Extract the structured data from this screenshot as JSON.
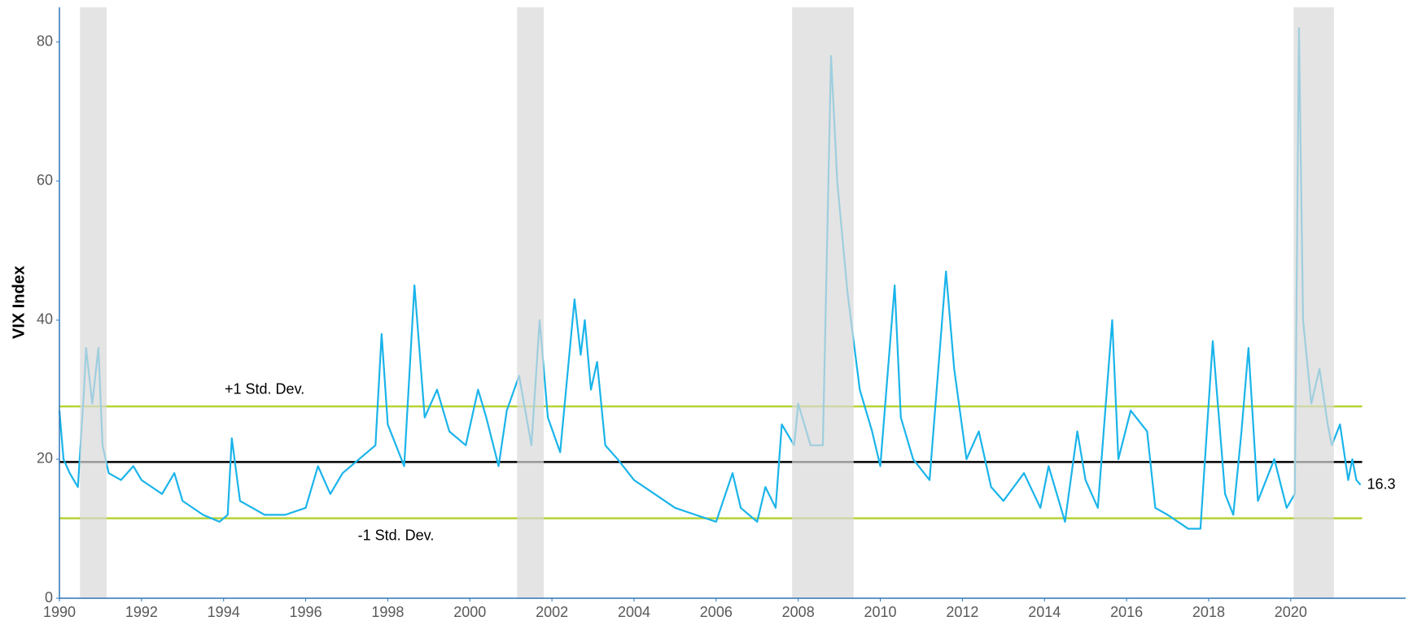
{
  "chart_data": {
    "type": "line",
    "y_label": "VIX Index",
    "xlim": [
      1990,
      2022.8
    ],
    "ylim": [
      0,
      85
    ],
    "xticks": [
      1990,
      1992,
      1994,
      1996,
      1998,
      2000,
      2002,
      2004,
      2006,
      2008,
      2010,
      2012,
      2014,
      2016,
      2018,
      2020
    ],
    "yticks": [
      0,
      20,
      40,
      60,
      80
    ],
    "shaded_color": "#d9d9d9",
    "shaded_regions": [
      [
        1990.5,
        1991.15
      ],
      [
        2001.15,
        2001.8
      ],
      [
        2007.85,
        2009.35
      ],
      [
        2020.07,
        2021.05
      ]
    ],
    "reference_lines": [
      {
        "label": "+1 Std. Dev.",
        "value": 27.6,
        "color": "#b5d334"
      },
      {
        "value": 19.6,
        "color": "#000000"
      },
      {
        "label": "-1 Std. Dev.",
        "value": 11.5,
        "color": "#b5d334"
      }
    ],
    "series": [
      {
        "color": "#1ab4ea",
        "x": [
          1990.0,
          1990.1,
          1990.25,
          1990.45,
          1990.6,
          1990.65,
          1990.8,
          1990.95,
          1991.05,
          1991.2,
          1991.5,
          1991.8,
          1992.0,
          1992.5,
          1992.8,
          1993.0,
          1993.5,
          1993.9,
          1994.1,
          1994.2,
          1994.4,
          1994.7,
          1995.0,
          1995.5,
          1996.0,
          1996.3,
          1996.6,
          1996.9,
          1997.3,
          1997.7,
          1997.85,
          1998.0,
          1998.4,
          1998.65,
          1998.9,
          1999.2,
          1999.5,
          1999.9,
          2000.2,
          2000.4,
          2000.7,
          2000.9,
          2001.2,
          2001.5,
          2001.7,
          2001.9,
          2002.2,
          2002.55,
          2002.7,
          2002.8,
          2002.95,
          2003.1,
          2003.3,
          2003.6,
          2004.0,
          2004.5,
          2005.0,
          2005.5,
          2006.0,
          2006.4,
          2006.6,
          2007.0,
          2007.2,
          2007.45,
          2007.6,
          2007.9,
          2008.0,
          2008.3,
          2008.6,
          2008.8,
          2008.95,
          2009.2,
          2009.5,
          2009.8,
          2010.0,
          2010.35,
          2010.5,
          2010.8,
          2011.2,
          2011.6,
          2011.8,
          2012.1,
          2012.4,
          2012.7,
          2013.0,
          2013.5,
          2013.9,
          2014.1,
          2014.5,
          2014.8,
          2015.0,
          2015.3,
          2015.65,
          2015.8,
          2016.1,
          2016.5,
          2016.7,
          2017.0,
          2017.5,
          2017.8,
          2018.1,
          2018.4,
          2018.6,
          2018.8,
          2018.97,
          2019.2,
          2019.6,
          2019.9,
          2020.1,
          2020.2,
          2020.3,
          2020.5,
          2020.7,
          2020.9,
          2021.0,
          2021.2,
          2021.4,
          2021.5,
          2021.6,
          2021.7
        ],
        "values": [
          27,
          20,
          18,
          16,
          30,
          36,
          28,
          36,
          22,
          18,
          17,
          19,
          17,
          15,
          18,
          14,
          12,
          11,
          12,
          23,
          14,
          13,
          12,
          12,
          13,
          19,
          15,
          18,
          20,
          22,
          38,
          25,
          19,
          45,
          26,
          30,
          24,
          22,
          30,
          26,
          19,
          27,
          32,
          22,
          40,
          26,
          21,
          43,
          35,
          40,
          30,
          34,
          22,
          20,
          17,
          15,
          13,
          12,
          11,
          18,
          13,
          11,
          16,
          13,
          25,
          22,
          28,
          22,
          22,
          78,
          60,
          44,
          30,
          24,
          19,
          45,
          26,
          20,
          17,
          47,
          33,
          20,
          24,
          16,
          14,
          18,
          13,
          19,
          11,
          24,
          17,
          13,
          40,
          20,
          27,
          24,
          13,
          12,
          10,
          10,
          37,
          15,
          12,
          24,
          36,
          14,
          20,
          13,
          15,
          82,
          40,
          28,
          33,
          25,
          22,
          25,
          17,
          20,
          17,
          16.3
        ]
      }
    ]
  }
}
